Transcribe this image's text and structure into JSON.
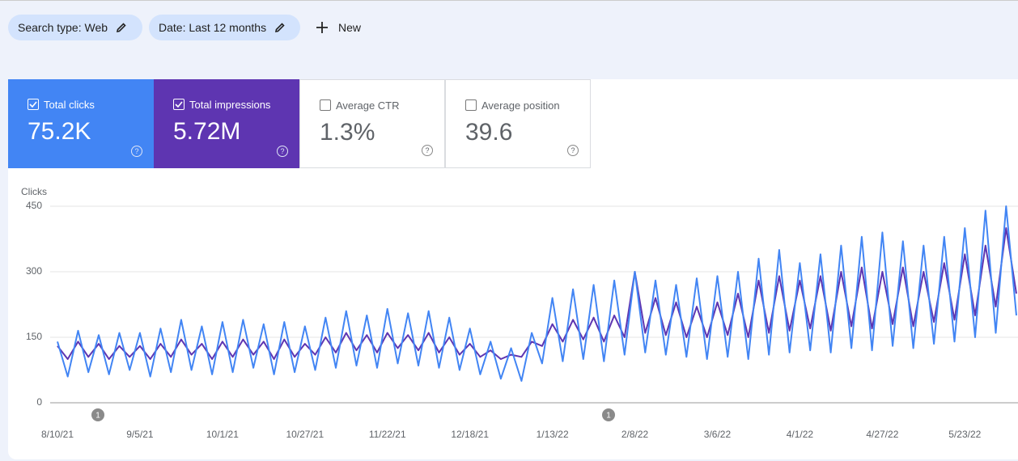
{
  "header": {
    "filters": [
      "Search type: Web",
      "Date: Last 12 months"
    ],
    "new_button": "New"
  },
  "metrics": [
    {
      "label": "Total clicks",
      "value": "75.2K",
      "checked": true,
      "color": "#4285f4"
    },
    {
      "label": "Total impressions",
      "value": "5.72M",
      "checked": true,
      "color": "#5e35b1"
    },
    {
      "label": "Average CTR",
      "value": "1.3%",
      "checked": false
    },
    {
      "label": "Average position",
      "value": "39.6",
      "checked": false
    }
  ],
  "chart_data": {
    "type": "line",
    "y_label": "Clicks",
    "categories": [
      "8/10/21",
      null,
      null,
      null,
      null,
      null,
      null,
      null,
      "9/5/21",
      null,
      null,
      null,
      null,
      null,
      null,
      null,
      "10/1/21",
      null,
      null,
      null,
      null,
      null,
      null,
      null,
      "10/27/21",
      null,
      null,
      null,
      null,
      null,
      null,
      null,
      "11/22/21",
      null,
      null,
      null,
      null,
      null,
      null,
      null,
      "12/18/21",
      null,
      null,
      null,
      null,
      null,
      null,
      null,
      "1/13/22",
      null,
      null,
      null,
      null,
      null,
      null,
      null,
      "2/8/22",
      null,
      null,
      null,
      null,
      null,
      null,
      null,
      "3/6/22",
      null,
      null,
      null,
      null,
      null,
      null,
      null,
      "4/1/22",
      null,
      null,
      null,
      null,
      null,
      null,
      null,
      "4/27/22",
      null,
      null,
      null,
      null,
      null,
      null,
      null,
      "5/23/22",
      null,
      null,
      null,
      null,
      null
    ],
    "series": [
      {
        "name": "Total clicks",
        "color": "#4285f4",
        "values": [
          140,
          60,
          165,
          70,
          155,
          65,
          160,
          75,
          160,
          60,
          170,
          70,
          190,
          75,
          175,
          65,
          185,
          70,
          190,
          80,
          180,
          65,
          185,
          70,
          175,
          75,
          195,
          80,
          210,
          85,
          200,
          80,
          215,
          90,
          205,
          85,
          210,
          80,
          195,
          75,
          170,
          65,
          140,
          55,
          125,
          50,
          160,
          90,
          240,
          95,
          260,
          100,
          270,
          95,
          280,
          110,
          300,
          115,
          280,
          110,
          270,
          105,
          285,
          100,
          290,
          105,
          300,
          100,
          330,
          110,
          350,
          115,
          320,
          120,
          340,
          115,
          360,
          125,
          380,
          120,
          390,
          130,
          370,
          125,
          360,
          135,
          380,
          140,
          400,
          150,
          440,
          160,
          450,
          200
        ]
      },
      {
        "name": "Total impressions",
        "color": "#5e35b1",
        "axis": "y2",
        "values": [
          13000,
          10000,
          14000,
          10500,
          13500,
          10000,
          13000,
          10500,
          13000,
          10000,
          13500,
          10500,
          14500,
          11000,
          13500,
          10000,
          14000,
          10500,
          14500,
          11000,
          14000,
          10000,
          14500,
          10500,
          13500,
          11000,
          15000,
          11500,
          16000,
          12000,
          15500,
          11500,
          16000,
          12500,
          15500,
          12000,
          16000,
          11500,
          15000,
          11000,
          13500,
          10500,
          12000,
          10000,
          11000,
          10500,
          14000,
          13000,
          18000,
          14000,
          19000,
          14500,
          19500,
          14000,
          20000,
          15000,
          30000,
          16000,
          24000,
          15500,
          23000,
          15000,
          22000,
          15000,
          23000,
          15500,
          25000,
          15000,
          28000,
          16000,
          29000,
          16500,
          28000,
          17000,
          29000,
          16500,
          30000,
          17500,
          31000,
          17000,
          30000,
          18000,
          31000,
          17500,
          30000,
          18500,
          32000,
          19000,
          34000,
          20000,
          36000,
          22000,
          40000,
          25000
        ]
      }
    ],
    "ylim": [
      0,
      450
    ],
    "yticks": [
      0,
      150,
      300,
      450
    ],
    "y2lim": [
      0,
      45000
    ],
    "grid": true,
    "annotations": [
      "1",
      "1"
    ]
  }
}
